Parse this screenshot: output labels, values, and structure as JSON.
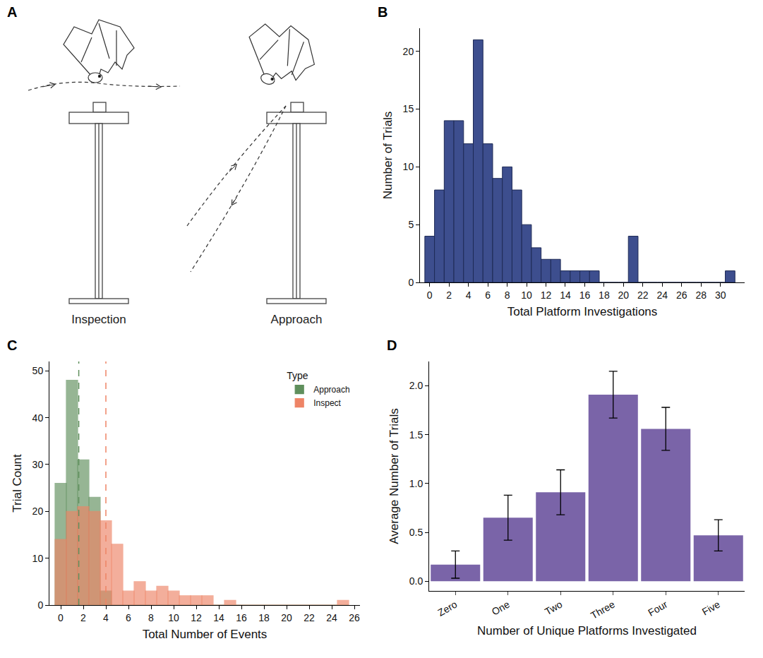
{
  "diagram": {
    "panel_label": "A",
    "labels": [
      "Inspection",
      "Approach"
    ]
  },
  "chart_data": [
    {
      "type": "histogram",
      "panel_label": "B",
      "x_label": "Total Platform Investigations",
      "y_label": "Number of Trials",
      "bins": [
        -0.5,
        0.5,
        1.5,
        2.5,
        3.5,
        4.5,
        5.5,
        6.5,
        7.5,
        8.5,
        9.5,
        10.5,
        11.5,
        12.5,
        13.5,
        14.5,
        15.5,
        16.5,
        17.5,
        18.5,
        19.5,
        20.5,
        21.5,
        22.5,
        23.5,
        24.5,
        25.5,
        26.5,
        27.5,
        28.5,
        29.5,
        30.5,
        31.5
      ],
      "values": [
        4,
        8,
        14,
        14,
        12,
        21,
        12,
        9,
        10,
        8,
        5,
        3,
        2,
        2,
        1,
        1,
        1,
        1,
        0,
        0,
        0,
        4,
        0,
        0,
        0,
        0,
        0,
        0,
        0,
        0,
        0,
        1
      ],
      "color": "#3d4e8e",
      "xlim": [
        -1,
        32.5
      ],
      "xticks": [
        0,
        2,
        4,
        6,
        8,
        10,
        12,
        14,
        16,
        18,
        20,
        22,
        24,
        26,
        28,
        30
      ],
      "ylim": [
        0,
        22
      ],
      "yticks": [
        0,
        5,
        10,
        15,
        20
      ],
      "grid": false
    },
    {
      "type": "histogram",
      "panel_label": "C",
      "x_label": "Total Number of Events",
      "y_label": "Trial Count",
      "legend_title": "Type",
      "legend": "top right",
      "bins": [
        -0.5,
        0.5,
        1.5,
        2.5,
        3.5,
        4.5,
        5.5,
        6.5,
        7.5,
        8.5,
        9.5,
        10.5,
        11.5,
        12.5,
        13.5,
        14.5,
        15.5,
        16.5,
        17.5,
        18.5,
        19.5,
        20.5,
        21.5,
        22.5,
        23.5,
        24.5,
        25.5
      ],
      "series": [
        {
          "name": "Approach",
          "color": "#5f8f5c",
          "mean": 1.6,
          "values": [
            26,
            48,
            31,
            23,
            3,
            0,
            0,
            0,
            0,
            0,
            0,
            0,
            0,
            0,
            0,
            0,
            0,
            0,
            0,
            0,
            0,
            0,
            0,
            0,
            0,
            0
          ]
        },
        {
          "name": "Inspect",
          "color": "#ee8466",
          "mean": 4,
          "values": [
            14,
            20,
            21,
            20,
            18,
            13,
            3,
            5,
            3,
            4,
            3,
            2,
            2,
            2,
            0,
            1,
            0,
            0,
            0,
            0,
            0,
            0,
            0,
            0,
            0,
            1
          ]
        }
      ],
      "line_style": "dashed",
      "xlim": [
        -1,
        26.5
      ],
      "xticks": [
        0,
        2,
        4,
        6,
        8,
        10,
        12,
        14,
        16,
        18,
        20,
        22,
        24,
        26
      ],
      "ylim": [
        0,
        52
      ],
      "yticks": [
        0,
        10,
        20,
        30,
        40,
        50
      ],
      "grid": false
    },
    {
      "type": "bar",
      "panel_label": "D",
      "x_label": "Number of Unique Platforms Investigated",
      "y_label": "Average Number of Trials",
      "categories": [
        "Zero",
        "One",
        "Two",
        "Three",
        "Four",
        "Five"
      ],
      "values": [
        0.17,
        0.65,
        0.91,
        1.91,
        1.56,
        0.47
      ],
      "errors": [
        0.14,
        0.23,
        0.23,
        0.24,
        0.22,
        0.16
      ],
      "color": "#7a64a8",
      "ylim": [
        -0.1,
        2.25
      ],
      "yticks": [
        {
          "value": 0,
          "label": "0.0"
        },
        {
          "value": 0.5,
          "label": "0.5"
        },
        {
          "value": 1,
          "label": "1.0"
        },
        {
          "value": 1.5,
          "label": "1.5"
        },
        {
          "value": 2,
          "label": "2.0"
        }
      ],
      "grid": false
    }
  ]
}
